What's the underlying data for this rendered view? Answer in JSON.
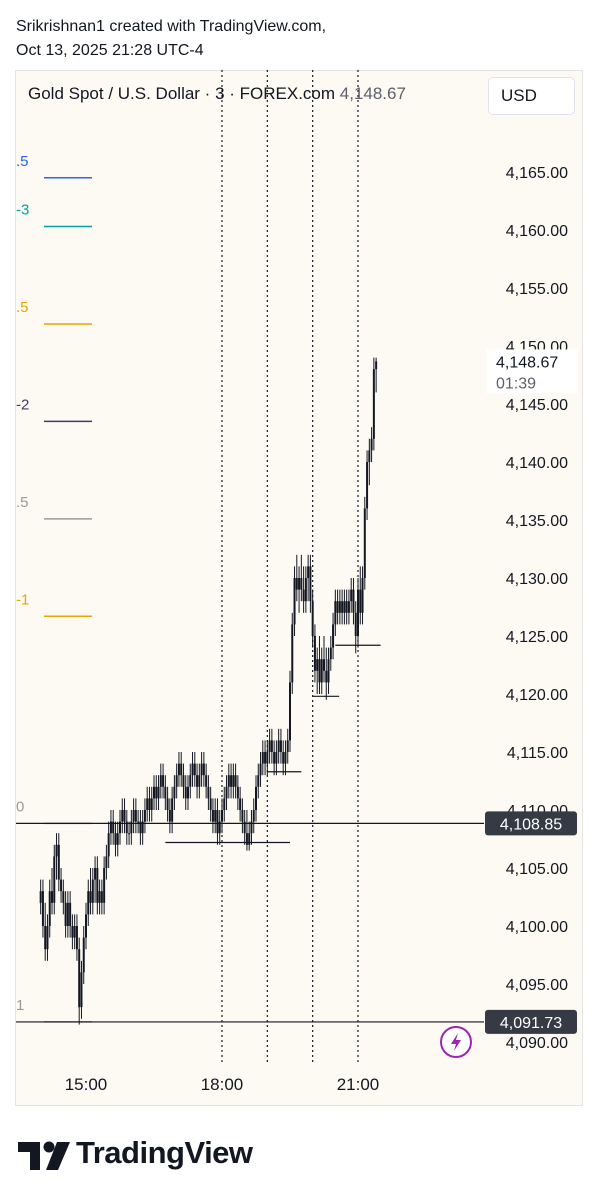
{
  "header": {
    "line1": "Srikrishnan1 created with TradingView.com,",
    "line2": "Oct 13, 2025 21:28 UTC-4"
  },
  "legend": {
    "symbol": "Gold Spot / U.S. Dollar · 3 · FOREX.com",
    "price": "4,148.67"
  },
  "currency": "USD",
  "brand": "TradingView",
  "colors": {
    "background": "#fdfaf3",
    "candle": "#131722",
    "fib_blue": "#2962ff",
    "fib_teal": "#00a3a3",
    "fib_orange": "#e8a400",
    "fib_navy": "#3c3c6e",
    "fib_gray": "#9a9a9a",
    "price_label_bg": "#363a45",
    "flash_icon": "#9c27b0"
  },
  "chart_data": {
    "type": "candlestick",
    "symbol": "Gold Spot / U.S. Dollar",
    "interval": "3",
    "exchange": "FOREX.com",
    "y_axis": {
      "ticks": [
        "4,165.00",
        "4,160.00",
        "4,155.00",
        "4,150.00",
        "4,145.00",
        "4,140.00",
        "4,135.00",
        "4,130.00",
        "4,125.00",
        "4,120.00",
        "4,115.00",
        "4,110.00",
        "4,105.00",
        "4,100.00",
        "4,095.00",
        "4,090.00"
      ],
      "range": [
        4089,
        4171
      ]
    },
    "x_axis": {
      "ticks": [
        {
          "label": "15:00",
          "time": "15:00"
        },
        {
          "label": "18:00",
          "time": "18:00"
        },
        {
          "label": "21:00",
          "time": "21:00"
        }
      ],
      "range": [
        "14:00",
        "22:15"
      ]
    },
    "current_price": {
      "value": 4148.67,
      "label": "4,148.67",
      "countdown": "01:39"
    },
    "price_levels": [
      {
        "value": 4108.85,
        "label": "4,108.85"
      },
      {
        "value": 4091.73,
        "label": "4,091.73"
      }
    ],
    "fib_levels": [
      {
        "label": ".5",
        "value": 4164.5,
        "color": "#2962ff"
      },
      {
        "label": "-3",
        "value": 4160.3,
        "color": "#00a3a3"
      },
      {
        "label": ".5",
        "value": 4151.9,
        "color": "#e8a400"
      },
      {
        "label": "-2",
        "value": 4143.5,
        "color": "#3c3c6e"
      },
      {
        "label": ".5",
        "value": 4135.1,
        "color": "#9a9a9a"
      },
      {
        "label": "-1",
        "value": 4126.7,
        "color": "#e8a400"
      },
      {
        "label": "0",
        "value": 4108.85,
        "color": "#9a9a9a"
      },
      {
        "label": "1",
        "value": 4091.73,
        "color": "#9a9a9a"
      }
    ],
    "vertical_markers": [
      "18:00",
      "19:00",
      "20:00",
      "21:00"
    ],
    "support_lines": [
      {
        "value": 4107.2,
        "from": "16:45",
        "to": "19:30"
      },
      {
        "value": 4113.3,
        "from": "19:00",
        "to": "19:45"
      },
      {
        "value": 4119.8,
        "from": "20:00",
        "to": "20:35"
      },
      {
        "value": 4124.2,
        "from": "20:30",
        "to": "21:30"
      }
    ],
    "candles": [
      {
        "t": "14:00",
        "o": 4102,
        "h": 4104,
        "l": 4101,
        "c": 4103
      },
      {
        "t": "14:03",
        "o": 4103,
        "h": 4104,
        "l": 4099,
        "c": 4100
      },
      {
        "t": "14:06",
        "o": 4100,
        "h": 4102,
        "l": 4097,
        "c": 4098
      },
      {
        "t": "14:09",
        "o": 4098,
        "h": 4101,
        "l": 4097,
        "c": 4100
      },
      {
        "t": "14:12",
        "o": 4100,
        "h": 4104,
        "l": 4099,
        "c": 4103
      },
      {
        "t": "14:15",
        "o": 4103,
        "h": 4105,
        "l": 4101,
        "c": 4102
      },
      {
        "t": "14:18",
        "o": 4102,
        "h": 4107,
        "l": 4101,
        "c": 4106
      },
      {
        "t": "14:21",
        "o": 4106,
        "h": 4108,
        "l": 4104,
        "c": 4107
      },
      {
        "t": "14:24",
        "o": 4107,
        "h": 4108,
        "l": 4103,
        "c": 4104
      },
      {
        "t": "14:27",
        "o": 4104,
        "h": 4105,
        "l": 4102,
        "c": 4103
      },
      {
        "t": "14:30",
        "o": 4103,
        "h": 4104,
        "l": 4101,
        "c": 4102
      },
      {
        "t": "14:33",
        "o": 4102,
        "h": 4103,
        "l": 4099,
        "c": 4100
      },
      {
        "t": "14:36",
        "o": 4100,
        "h": 4103,
        "l": 4099,
        "c": 4102
      },
      {
        "t": "14:39",
        "o": 4102,
        "h": 4103,
        "l": 4099,
        "c": 4100
      },
      {
        "t": "14:42",
        "o": 4100,
        "h": 4101,
        "l": 4098,
        "c": 4099
      },
      {
        "t": "14:45",
        "o": 4099,
        "h": 4101,
        "l": 4098,
        "c": 4100
      },
      {
        "t": "14:48",
        "o": 4100,
        "h": 4101,
        "l": 4097,
        "c": 4098
      },
      {
        "t": "14:51",
        "o": 4098,
        "h": 4099,
        "l": 4091.5,
        "c": 4093
      },
      {
        "t": "14:54",
        "o": 4093,
        "h": 4097,
        "l": 4092,
        "c": 4096
      },
      {
        "t": "14:57",
        "o": 4096,
        "h": 4100,
        "l": 4095,
        "c": 4099
      },
      {
        "t": "15:00",
        "o": 4099,
        "h": 4102,
        "l": 4098,
        "c": 4101
      },
      {
        "t": "15:03",
        "o": 4101,
        "h": 4104,
        "l": 4100,
        "c": 4103
      },
      {
        "t": "15:06",
        "o": 4103,
        "h": 4105,
        "l": 4101,
        "c": 4102
      },
      {
        "t": "15:09",
        "o": 4102,
        "h": 4105,
        "l": 4101,
        "c": 4104
      },
      {
        "t": "15:12",
        "o": 4104,
        "h": 4106,
        "l": 4102,
        "c": 4105
      },
      {
        "t": "15:15",
        "o": 4105,
        "h": 4106,
        "l": 4101,
        "c": 4102
      },
      {
        "t": "15:18",
        "o": 4102,
        "h": 4104,
        "l": 4101,
        "c": 4103
      },
      {
        "t": "15:21",
        "o": 4103,
        "h": 4104,
        "l": 4101,
        "c": 4102
      },
      {
        "t": "15:24",
        "o": 4102,
        "h": 4106,
        "l": 4101,
        "c": 4105
      },
      {
        "t": "15:27",
        "o": 4105,
        "h": 4107,
        "l": 4104,
        "c": 4106
      },
      {
        "t": "15:30",
        "o": 4106,
        "h": 4109,
        "l": 4105,
        "c": 4108
      },
      {
        "t": "15:33",
        "o": 4108,
        "h": 4110,
        "l": 4107,
        "c": 4109
      },
      {
        "t": "15:36",
        "o": 4109,
        "h": 4110,
        "l": 4107,
        "c": 4108
      },
      {
        "t": "15:39",
        "o": 4108,
        "h": 4109,
        "l": 4106,
        "c": 4107
      },
      {
        "t": "15:42",
        "o": 4107,
        "h": 4109,
        "l": 4106,
        "c": 4108
      },
      {
        "t": "15:45",
        "o": 4108,
        "h": 4110,
        "l": 4107,
        "c": 4109
      },
      {
        "t": "15:48",
        "o": 4109,
        "h": 4111,
        "l": 4108,
        "c": 4110
      },
      {
        "t": "15:51",
        "o": 4110,
        "h": 4111,
        "l": 4108,
        "c": 4109
      },
      {
        "t": "15:54",
        "o": 4109,
        "h": 4110,
        "l": 4107,
        "c": 4108
      },
      {
        "t": "15:57",
        "o": 4108,
        "h": 4109,
        "l": 4107,
        "c": 4108
      },
      {
        "t": "16:00",
        "o": 4108,
        "h": 4110,
        "l": 4107,
        "c": 4109
      },
      {
        "t": "16:03",
        "o": 4109,
        "h": 4111,
        "l": 4108,
        "c": 4110
      },
      {
        "t": "16:06",
        "o": 4110,
        "h": 4111,
        "l": 4108,
        "c": 4109
      },
      {
        "t": "16:09",
        "o": 4109,
        "h": 4110,
        "l": 4108,
        "c": 4109
      },
      {
        "t": "16:12",
        "o": 4109,
        "h": 4110,
        "l": 4107,
        "c": 4108
      },
      {
        "t": "16:15",
        "o": 4108,
        "h": 4110,
        "l": 4107,
        "c": 4109
      },
      {
        "t": "16:18",
        "o": 4109,
        "h": 4111,
        "l": 4108,
        "c": 4110
      },
      {
        "t": "16:21",
        "o": 4110,
        "h": 4112,
        "l": 4109,
        "c": 4111
      },
      {
        "t": "16:24",
        "o": 4111,
        "h": 4112,
        "l": 4109,
        "c": 4110
      },
      {
        "t": "16:27",
        "o": 4110,
        "h": 4112,
        "l": 4109,
        "c": 4111
      },
      {
        "t": "16:30",
        "o": 4111,
        "h": 4113,
        "l": 4110,
        "c": 4112
      },
      {
        "t": "16:33",
        "o": 4112,
        "h": 4113,
        "l": 4110,
        "c": 4111
      },
      {
        "t": "16:36",
        "o": 4111,
        "h": 4113,
        "l": 4110,
        "c": 4112
      },
      {
        "t": "16:39",
        "o": 4112,
        "h": 4114,
        "l": 4111,
        "c": 4113
      },
      {
        "t": "16:42",
        "o": 4113,
        "h": 4114,
        "l": 4111,
        "c": 4112
      },
      {
        "t": "16:45",
        "o": 4112,
        "h": 4113,
        "l": 4110,
        "c": 4111
      },
      {
        "t": "16:48",
        "o": 4111,
        "h": 4112,
        "l": 4109,
        "c": 4110
      },
      {
        "t": "16:51",
        "o": 4110,
        "h": 4111,
        "l": 4108,
        "c": 4109
      },
      {
        "t": "16:54",
        "o": 4109,
        "h": 4112,
        "l": 4108,
        "c": 4111
      },
      {
        "t": "16:57",
        "o": 4111,
        "h": 4113,
        "l": 4110,
        "c": 4112
      },
      {
        "t": "17:00",
        "o": 4112,
        "h": 4114,
        "l": 4111,
        "c": 4113
      },
      {
        "t": "17:03",
        "o": 4113,
        "h": 4115,
        "l": 4112,
        "c": 4114
      },
      {
        "t": "17:06",
        "o": 4114,
        "h": 4115,
        "l": 4112,
        "c": 4113
      },
      {
        "t": "17:09",
        "o": 4113,
        "h": 4114,
        "l": 4111,
        "c": 4112
      },
      {
        "t": "17:12",
        "o": 4112,
        "h": 4113,
        "l": 4110,
        "c": 4111
      },
      {
        "t": "17:15",
        "o": 4111,
        "h": 4113,
        "l": 4110,
        "c": 4112
      },
      {
        "t": "17:18",
        "o": 4112,
        "h": 4114,
        "l": 4111,
        "c": 4113
      },
      {
        "t": "17:21",
        "o": 4113,
        "h": 4115,
        "l": 4112,
        "c": 4114
      },
      {
        "t": "17:24",
        "o": 4114,
        "h": 4115,
        "l": 4112,
        "c": 4113
      },
      {
        "t": "17:27",
        "o": 4113,
        "h": 4114,
        "l": 4111,
        "c": 4112
      },
      {
        "t": "17:30",
        "o": 4112,
        "h": 4114,
        "l": 4111,
        "c": 4113
      },
      {
        "t": "17:33",
        "o": 4113,
        "h": 4115,
        "l": 4112,
        "c": 4114
      },
      {
        "t": "17:36",
        "o": 4114,
        "h": 4115,
        "l": 4112,
        "c": 4113
      },
      {
        "t": "17:39",
        "o": 4113,
        "h": 4114,
        "l": 4111,
        "c": 4112
      },
      {
        "t": "17:42",
        "o": 4112,
        "h": 4113,
        "l": 4110,
        "c": 4111
      },
      {
        "t": "17:45",
        "o": 4111,
        "h": 4112,
        "l": 4109,
        "c": 4110
      },
      {
        "t": "17:48",
        "o": 4110,
        "h": 4111,
        "l": 4108,
        "c": 4109
      },
      {
        "t": "17:51",
        "o": 4109,
        "h": 4111,
        "l": 4108,
        "c": 4110
      },
      {
        "t": "17:54",
        "o": 4110,
        "h": 4111,
        "l": 4107,
        "c": 4108
      },
      {
        "t": "17:57",
        "o": 4108,
        "h": 4110,
        "l": 4107,
        "c": 4109
      },
      {
        "t": "18:00",
        "o": 4109,
        "h": 4111,
        "l": 4108,
        "c": 4110
      },
      {
        "t": "18:03",
        "o": 4110,
        "h": 4112,
        "l": 4109,
        "c": 4111
      },
      {
        "t": "18:06",
        "o": 4111,
        "h": 4113,
        "l": 4110,
        "c": 4112
      },
      {
        "t": "18:09",
        "o": 4112,
        "h": 4114,
        "l": 4111,
        "c": 4113
      },
      {
        "t": "18:12",
        "o": 4113,
        "h": 4114,
        "l": 4111,
        "c": 4112
      },
      {
        "t": "18:15",
        "o": 4112,
        "h": 4114,
        "l": 4111,
        "c": 4113
      },
      {
        "t": "18:18",
        "o": 4113,
        "h": 4114,
        "l": 4111,
        "c": 4112
      },
      {
        "t": "18:21",
        "o": 4112,
        "h": 4113,
        "l": 4110,
        "c": 4111
      },
      {
        "t": "18:24",
        "o": 4111,
        "h": 4112,
        "l": 4109,
        "c": 4110
      },
      {
        "t": "18:27",
        "o": 4110,
        "h": 4111,
        "l": 4108,
        "c": 4109
      },
      {
        "t": "18:30",
        "o": 4109,
        "h": 4110,
        "l": 4107,
        "c": 4108
      },
      {
        "t": "18:33",
        "o": 4108,
        "h": 4110,
        "l": 4106.5,
        "c": 4107
      },
      {
        "t": "18:36",
        "o": 4107,
        "h": 4109,
        "l": 4106.5,
        "c": 4108
      },
      {
        "t": "18:39",
        "o": 4108,
        "h": 4110,
        "l": 4107,
        "c": 4109
      },
      {
        "t": "18:42",
        "o": 4109,
        "h": 4111,
        "l": 4108,
        "c": 4110
      },
      {
        "t": "18:45",
        "o": 4110,
        "h": 4113,
        "l": 4109,
        "c": 4112
      },
      {
        "t": "18:48",
        "o": 4112,
        "h": 4114,
        "l": 4111,
        "c": 4113
      },
      {
        "t": "18:51",
        "o": 4113,
        "h": 4115,
        "l": 4112,
        "c": 4114
      },
      {
        "t": "18:54",
        "o": 4114,
        "h": 4116,
        "l": 4113,
        "c": 4115
      },
      {
        "t": "18:57",
        "o": 4115,
        "h": 4116,
        "l": 4113,
        "c": 4114
      },
      {
        "t": "19:00",
        "o": 4114,
        "h": 4116,
        "l": 4113,
        "c": 4115
      },
      {
        "t": "19:03",
        "o": 4115,
        "h": 4117,
        "l": 4114,
        "c": 4116
      },
      {
        "t": "19:06",
        "o": 4116,
        "h": 4117,
        "l": 4114,
        "c": 4115
      },
      {
        "t": "19:09",
        "o": 4115,
        "h": 4116,
        "l": 4113,
        "c": 4114
      },
      {
        "t": "19:12",
        "o": 4114,
        "h": 4116,
        "l": 4113,
        "c": 4115
      },
      {
        "t": "19:15",
        "o": 4115,
        "h": 4117,
        "l": 4114,
        "c": 4116
      },
      {
        "t": "19:18",
        "o": 4116,
        "h": 4117,
        "l": 4114,
        "c": 4115
      },
      {
        "t": "19:21",
        "o": 4115,
        "h": 4116,
        "l": 4113,
        "c": 4114
      },
      {
        "t": "19:24",
        "o": 4114,
        "h": 4116,
        "l": 4113,
        "c": 4115
      },
      {
        "t": "19:27",
        "o": 4115,
        "h": 4117,
        "l": 4114,
        "c": 4116
      },
      {
        "t": "19:30",
        "o": 4116,
        "h": 4122,
        "l": 4115,
        "c": 4121
      },
      {
        "t": "19:33",
        "o": 4121,
        "h": 4127,
        "l": 4120,
        "c": 4126
      },
      {
        "t": "19:36",
        "o": 4126,
        "h": 4131,
        "l": 4125,
        "c": 4130
      },
      {
        "t": "19:39",
        "o": 4130,
        "h": 4132,
        "l": 4128,
        "c": 4129
      },
      {
        "t": "19:42",
        "o": 4129,
        "h": 4131,
        "l": 4127,
        "c": 4130
      },
      {
        "t": "19:45",
        "o": 4130,
        "h": 4132,
        "l": 4128,
        "c": 4129
      },
      {
        "t": "19:48",
        "o": 4129,
        "h": 4131,
        "l": 4127,
        "c": 4128
      },
      {
        "t": "19:51",
        "o": 4128,
        "h": 4131,
        "l": 4127,
        "c": 4130
      },
      {
        "t": "19:54",
        "o": 4130,
        "h": 4132,
        "l": 4128,
        "c": 4131
      },
      {
        "t": "19:57",
        "o": 4131,
        "h": 4132,
        "l": 4127,
        "c": 4128
      },
      {
        "t": "20:00",
        "o": 4128,
        "h": 4129,
        "l": 4124,
        "c": 4125
      },
      {
        "t": "20:03",
        "o": 4125,
        "h": 4126,
        "l": 4121,
        "c": 4122
      },
      {
        "t": "20:06",
        "o": 4122,
        "h": 4124,
        "l": 4120,
        "c": 4123
      },
      {
        "t": "20:09",
        "o": 4123,
        "h": 4125,
        "l": 4120,
        "c": 4121
      },
      {
        "t": "20:12",
        "o": 4121,
        "h": 4124,
        "l": 4120,
        "c": 4123
      },
      {
        "t": "20:15",
        "o": 4123,
        "h": 4125,
        "l": 4121,
        "c": 4122
      },
      {
        "t": "20:18",
        "o": 4122,
        "h": 4124,
        "l": 4119.5,
        "c": 4121
      },
      {
        "t": "20:21",
        "o": 4121,
        "h": 4124,
        "l": 4120,
        "c": 4123
      },
      {
        "t": "20:24",
        "o": 4123,
        "h": 4125,
        "l": 4122,
        "c": 4124
      },
      {
        "t": "20:27",
        "o": 4124,
        "h": 4127,
        "l": 4123,
        "c": 4126
      },
      {
        "t": "20:30",
        "o": 4126,
        "h": 4129,
        "l": 4125,
        "c": 4128
      },
      {
        "t": "20:33",
        "o": 4128,
        "h": 4129,
        "l": 4126,
        "c": 4127
      },
      {
        "t": "20:36",
        "o": 4127,
        "h": 4129,
        "l": 4126,
        "c": 4128
      },
      {
        "t": "20:39",
        "o": 4128,
        "h": 4129,
        "l": 4126,
        "c": 4127
      },
      {
        "t": "20:42",
        "o": 4127,
        "h": 4129,
        "l": 4126,
        "c": 4128
      },
      {
        "t": "20:45",
        "o": 4128,
        "h": 4129,
        "l": 4126,
        "c": 4127
      },
      {
        "t": "20:48",
        "o": 4127,
        "h": 4129,
        "l": 4126,
        "c": 4128
      },
      {
        "t": "20:51",
        "o": 4128,
        "h": 4130,
        "l": 4127,
        "c": 4129
      },
      {
        "t": "20:54",
        "o": 4129,
        "h": 4130,
        "l": 4126,
        "c": 4127
      },
      {
        "t": "20:57",
        "o": 4127,
        "h": 4128,
        "l": 4123.5,
        "c": 4125
      },
      {
        "t": "21:00",
        "o": 4125,
        "h": 4130,
        "l": 4124,
        "c": 4129
      },
      {
        "t": "21:03",
        "o": 4129,
        "h": 4131,
        "l": 4126,
        "c": 4127
      },
      {
        "t": "21:06",
        "o": 4127,
        "h": 4131,
        "l": 4126,
        "c": 4130
      },
      {
        "t": "21:09",
        "o": 4130,
        "h": 4137,
        "l": 4129,
        "c": 4136
      },
      {
        "t": "21:12",
        "o": 4136,
        "h": 4141,
        "l": 4135,
        "c": 4140
      },
      {
        "t": "21:15",
        "o": 4140,
        "h": 4142,
        "l": 4138,
        "c": 4141
      },
      {
        "t": "21:18",
        "o": 4141,
        "h": 4143,
        "l": 4140,
        "c": 4142
      },
      {
        "t": "21:21",
        "o": 4142,
        "h": 4149,
        "l": 4141,
        "c": 4148
      },
      {
        "t": "21:24",
        "o": 4148,
        "h": 4149,
        "l": 4146,
        "c": 4148.67
      }
    ]
  }
}
